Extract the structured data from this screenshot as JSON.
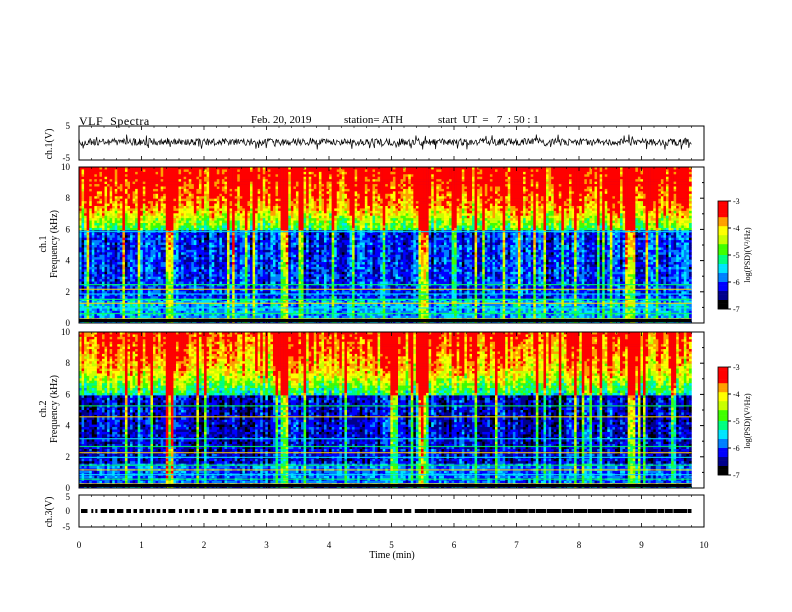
{
  "header": {
    "title": "VLF  Spectra",
    "date": "Feb. 20, 2019",
    "station": "station= ATH",
    "start": "start  UT  =   7  : 50 : 1"
  },
  "chart_data": [
    {
      "type": "line",
      "panel": "ch1-waveform",
      "ylabel": "ch.1(V)",
      "ylim": [
        -5,
        5
      ],
      "yticks": [
        "5",
        "-5"
      ],
      "xlim": [
        0,
        10
      ],
      "data_extent_min": 9.8,
      "trace_color": "#000000"
    },
    {
      "type": "heatmap",
      "panel": "ch1-spectrogram",
      "ylabel_top": "ch.1",
      "ylabel": "Frequency  (kHz)",
      "ylim": [
        0,
        10
      ],
      "yticks": [
        "0",
        "2",
        "4",
        "6",
        "8",
        "10"
      ],
      "xlim": [
        0,
        10
      ],
      "data_extent_min": 9.8,
      "colorbar": {
        "label": "log(PSD)(V²/Hz)",
        "range": [
          -7,
          -3
        ],
        "ticks": [
          "-3",
          "-4",
          "-5",
          "-6",
          "-7"
        ]
      }
    },
    {
      "type": "heatmap",
      "panel": "ch2-spectrogram",
      "ylabel_top": "ch.2",
      "ylabel": "Frequency  (kHz)",
      "ylim": [
        0,
        10
      ],
      "yticks": [
        "0",
        "2",
        "4",
        "6",
        "8",
        "10"
      ],
      "xlim": [
        0,
        10
      ],
      "data_extent_min": 9.8,
      "colorbar": {
        "label": "log(PSD)(V²/Hz)",
        "range": [
          -7,
          -3
        ],
        "ticks": [
          "-3",
          "-4",
          "-5",
          "-6",
          "-7"
        ]
      }
    },
    {
      "type": "line",
      "panel": "ch3-waveform",
      "ylabel": "ch.3(V)",
      "ylim": [
        -5,
        5
      ],
      "yticks": [
        "5",
        "0",
        "-5"
      ],
      "xlim": [
        0,
        10
      ],
      "level": 0,
      "data_extent_min": 9.8,
      "trace_color": "#000000"
    }
  ],
  "xaxis": {
    "label": "Time  (min)",
    "ticks": [
      "0",
      "1",
      "2",
      "3",
      "4",
      "5",
      "6",
      "7",
      "8",
      "9",
      "10"
    ]
  },
  "colormap": [
    "#000000",
    "#00008b",
    "#0000ff",
    "#0080ff",
    "#00e5ff",
    "#00ff80",
    "#40ff00",
    "#c8ff00",
    "#ffff00",
    "#ffa000",
    "#ff0000",
    "#ff9a9a",
    "#ffffff"
  ]
}
